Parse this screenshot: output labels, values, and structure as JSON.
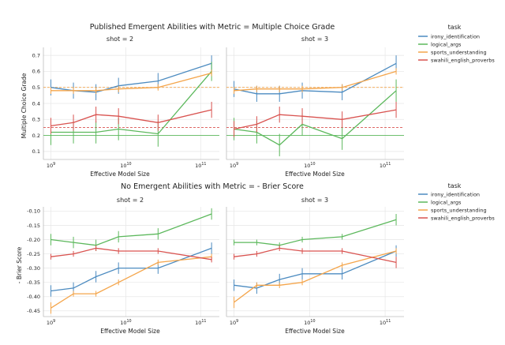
{
  "colors": {
    "irony_identification": "#4C8BC0",
    "logical_args": "#5CB85C",
    "sports_understanding": "#F4A54B",
    "swahili_english_proverbs": "#D95350"
  },
  "legend": {
    "title": "task",
    "items": [
      "irony_identification",
      "logical_args",
      "sports_understanding",
      "swahili_english_proverbs"
    ]
  },
  "chart_data": [
    {
      "type": "line",
      "title": "Published Emergent Abilities with Metric = Multiple Choice Grade",
      "xlabel": "Effective Model Size",
      "ylabel": "Multiple Choice Grade",
      "x_scale": "log",
      "x_ticks": [
        "10^9",
        "10^10",
        "10^11"
      ],
      "ylim": [
        0.05,
        0.75
      ],
      "y_ticks": [
        "0.1",
        "0.2",
        "0.3",
        "0.4",
        "0.5",
        "0.6",
        "0.7"
      ],
      "baselines": [
        {
          "task": "sports_understanding",
          "y": 0.5
        },
        {
          "task": "swahili_english_proverbs",
          "y": 0.25
        },
        {
          "task": "logical_args",
          "y": 0.2
        }
      ],
      "panels": [
        {
          "title": "shot = 2",
          "x": [
            1000000000.0,
            2000000000.0,
            4000000000.0,
            8000000000.0,
            27000000000.0,
            140000000000.0
          ],
          "series": [
            {
              "name": "irony_identification",
              "values": [
                0.5,
                0.48,
                0.47,
                0.51,
                0.54,
                0.65
              ],
              "err": [
                0.05,
                0.05,
                0.05,
                0.05,
                0.05,
                0.05
              ]
            },
            {
              "name": "logical_args",
              "values": [
                0.22,
                0.22,
                0.22,
                0.24,
                0.21,
                0.6
              ],
              "err": [
                0.08,
                0.07,
                0.07,
                0.07,
                0.08,
                0.06
              ]
            },
            {
              "name": "sports_understanding",
              "values": [
                0.48,
                0.48,
                0.48,
                0.49,
                0.5,
                0.59
              ],
              "err": [
                0.02,
                0.02,
                0.02,
                0.02,
                0.02,
                0.02
              ]
            },
            {
              "name": "swahili_english_proverbs",
              "values": [
                0.26,
                0.28,
                0.33,
                0.32,
                0.28,
                0.36
              ],
              "err": [
                0.05,
                0.05,
                0.05,
                0.05,
                0.05,
                0.05
              ]
            }
          ]
        },
        {
          "title": "shot = 3",
          "x": [
            1000000000.0,
            2000000000.0,
            4000000000.0,
            8000000000.0,
            27000000000.0,
            140000000000.0
          ],
          "series": [
            {
              "name": "irony_identification",
              "values": [
                0.49,
                0.46,
                0.46,
                0.48,
                0.47,
                0.65
              ],
              "err": [
                0.05,
                0.05,
                0.05,
                0.05,
                0.05,
                0.05
              ]
            },
            {
              "name": "logical_args",
              "values": [
                0.24,
                0.22,
                0.14,
                0.27,
                0.18,
                0.48
              ],
              "err": [
                0.07,
                0.07,
                0.07,
                0.07,
                0.07,
                0.07
              ]
            },
            {
              "name": "sports_understanding",
              "values": [
                0.48,
                0.49,
                0.49,
                0.49,
                0.5,
                0.6
              ],
              "err": [
                0.02,
                0.02,
                0.02,
                0.02,
                0.02,
                0.02
              ]
            },
            {
              "name": "swahili_english_proverbs",
              "values": [
                0.24,
                0.27,
                0.33,
                0.32,
                0.3,
                0.36
              ],
              "err": [
                0.05,
                0.05,
                0.05,
                0.05,
                0.05,
                0.05
              ]
            }
          ]
        }
      ]
    },
    {
      "type": "line",
      "title": "No Emergent Abilities with Metric = - Brier Score",
      "xlabel": "Effective Model Size",
      "ylabel": "- Brier Score",
      "x_scale": "log",
      "x_ticks": [
        "10^9",
        "10^10",
        "10^11"
      ],
      "ylim": [
        -0.47,
        -0.085
      ],
      "y_ticks": [
        "-0.45",
        "-0.40",
        "-0.35",
        "-0.30",
        "-0.25",
        "-0.20",
        "-0.15",
        "-0.10"
      ],
      "panels": [
        {
          "title": "shot = 2",
          "x": [
            1000000000.0,
            2000000000.0,
            4000000000.0,
            8000000000.0,
            27000000000.0,
            140000000000.0
          ],
          "series": [
            {
              "name": "irony_identification",
              "values": [
                -0.38,
                -0.37,
                -0.33,
                -0.3,
                -0.3,
                -0.23
              ],
              "err": [
                0.02,
                0.02,
                0.02,
                0.02,
                0.02,
                0.02
              ]
            },
            {
              "name": "logical_args",
              "values": [
                -0.2,
                -0.21,
                -0.22,
                -0.19,
                -0.18,
                -0.11
              ],
              "err": [
                0.02,
                0.02,
                0.02,
                0.02,
                0.02,
                0.02
              ]
            },
            {
              "name": "sports_understanding",
              "values": [
                -0.44,
                -0.39,
                -0.39,
                -0.35,
                -0.28,
                -0.26
              ],
              "err": [
                0.02,
                0.01,
                0.01,
                0.01,
                0.01,
                0.01
              ]
            },
            {
              "name": "swahili_english_proverbs",
              "values": [
                -0.26,
                -0.25,
                -0.23,
                -0.24,
                -0.24,
                -0.27
              ],
              "err": [
                0.01,
                0.01,
                0.01,
                0.01,
                0.01,
                0.01
              ]
            }
          ]
        },
        {
          "title": "shot = 3",
          "x": [
            1000000000.0,
            2000000000.0,
            4000000000.0,
            8000000000.0,
            27000000000.0,
            140000000000.0
          ],
          "series": [
            {
              "name": "irony_identification",
              "values": [
                -0.36,
                -0.37,
                -0.34,
                -0.32,
                -0.32,
                -0.24
              ],
              "err": [
                0.02,
                0.02,
                0.02,
                0.02,
                0.02,
                0.02
              ]
            },
            {
              "name": "logical_args",
              "values": [
                -0.21,
                -0.21,
                -0.22,
                -0.2,
                -0.19,
                -0.13
              ],
              "err": [
                0.01,
                0.01,
                0.01,
                0.01,
                0.01,
                0.02
              ]
            },
            {
              "name": "sports_understanding",
              "values": [
                -0.42,
                -0.36,
                -0.36,
                -0.35,
                -0.29,
                -0.24
              ],
              "err": [
                0.02,
                0.01,
                0.01,
                0.01,
                0.01,
                0.01
              ]
            },
            {
              "name": "swahili_english_proverbs",
              "values": [
                -0.26,
                -0.25,
                -0.23,
                -0.24,
                -0.24,
                -0.28
              ],
              "err": [
                0.01,
                0.01,
                0.01,
                0.01,
                0.01,
                0.02
              ]
            }
          ]
        }
      ]
    }
  ]
}
